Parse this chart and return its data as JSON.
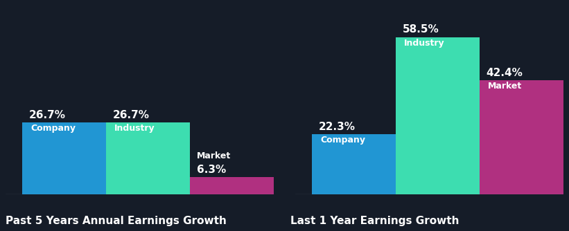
{
  "background_color": "#151c28",
  "group1": {
    "title": "Past 5 Years Annual Earnings Growth",
    "bars": [
      {
        "label": "Company",
        "value": 26.7,
        "color": "#2196d3",
        "label_inside": true
      },
      {
        "label": "Industry",
        "value": 26.7,
        "color": "#3dddb0",
        "label_inside": true
      },
      {
        "label": "Market",
        "value": 6.3,
        "color": "#b03080",
        "label_inside": false
      }
    ]
  },
  "group2": {
    "title": "Last 1 Year Earnings Growth",
    "bars": [
      {
        "label": "Company",
        "value": 22.3,
        "color": "#2196d3",
        "label_inside": true
      },
      {
        "label": "Industry",
        "value": 58.5,
        "color": "#3dddb0",
        "label_inside": true
      },
      {
        "label": "Market",
        "value": 42.4,
        "color": "#b03080",
        "label_inside": true
      }
    ]
  },
  "label_fontsize": 9,
  "value_fontsize": 11,
  "title_fontsize": 11,
  "text_color": "#ffffff",
  "title_color": "#ffffff",
  "ylim": [
    0,
    68
  ]
}
